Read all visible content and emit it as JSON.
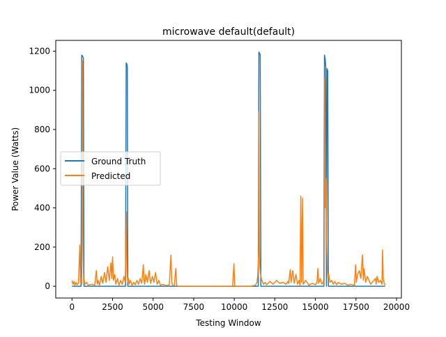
{
  "chart_data": {
    "type": "line",
    "title": "microwave default(default)",
    "xlabel": "Testing Window",
    "ylabel": "Power Value (Watts)",
    "xlim": [
      -1000,
      20300
    ],
    "ylim": [
      -60,
      1255
    ],
    "xticks": [
      0,
      2500,
      5000,
      7500,
      10000,
      12500,
      15000,
      17500,
      20000
    ],
    "xtick_labels": [
      "0",
      "2500",
      "5000",
      "7500",
      "10000",
      "12500",
      "15000",
      "17500",
      "20000"
    ],
    "yticks": [
      0,
      200,
      400,
      600,
      800,
      1000,
      1200
    ],
    "ytick_labels": [
      "0",
      "200",
      "400",
      "600",
      "800",
      "1000",
      "1200"
    ],
    "grid": false,
    "legend_position": "center-left",
    "series": [
      {
        "name": "Ground Truth",
        "color": "#1f77b4",
        "x": [
          0,
          560,
          600,
          650,
          700,
          740,
          3300,
          3340,
          3380,
          3410,
          3440,
          11480,
          11520,
          11560,
          11600,
          11640,
          15520,
          15560,
          15600,
          15640,
          15680,
          15720,
          15760,
          15800,
          19300
        ],
        "y": [
          0,
          0,
          1180,
          1175,
          1165,
          0,
          0,
          1140,
          1135,
          1120,
          0,
          0,
          1195,
          1190,
          1180,
          0,
          0,
          1180,
          1160,
          1120,
          0,
          1110,
          1100,
          0,
          0
        ]
      },
      {
        "name": "Predicted",
        "color": "#ff7f0e",
        "x": [
          0,
          60,
          120,
          180,
          250,
          320,
          400,
          480,
          520,
          560,
          600,
          640,
          680,
          720,
          760,
          800,
          900,
          1000,
          1200,
          1400,
          1500,
          1560,
          1620,
          1700,
          1800,
          1900,
          2000,
          2100,
          2200,
          2300,
          2400,
          2450,
          2500,
          2560,
          2640,
          2700,
          2800,
          2900,
          3000,
          3100,
          3200,
          3280,
          3320,
          3360,
          3380,
          3400,
          3440,
          3480,
          3520,
          3600,
          3700,
          3800,
          3900,
          4000,
          4100,
          4200,
          4300,
          4400,
          4440,
          4480,
          4550,
          4650,
          4750,
          4850,
          4950,
          5050,
          5150,
          5250,
          5350,
          5450,
          5600,
          5800,
          6000,
          6100,
          6150,
          6200,
          6300,
          6400,
          6450,
          6500,
          6600,
          7000,
          8000,
          9000,
          9900,
          9980,
          10030,
          10100,
          11000,
          11300,
          11400,
          11450,
          11500,
          11520,
          11550,
          11580,
          11620,
          11700,
          11800,
          11900,
          12000,
          12200,
          12400,
          12600,
          12800,
          13000,
          13200,
          13300,
          13350,
          13450,
          13500,
          13600,
          13700,
          13800,
          13900,
          14000,
          14050,
          14100,
          14150,
          14200,
          14250,
          14400,
          14600,
          14800,
          15000,
          15100,
          15150,
          15200,
          15300,
          15400,
          15500,
          15540,
          15580,
          15620,
          15660,
          15700,
          15740,
          15780,
          15820,
          15900,
          16000,
          16100,
          16200,
          16300,
          16400,
          16600,
          16800,
          17000,
          17200,
          17400,
          17480,
          17520,
          17600,
          17700,
          17800,
          17900,
          17960,
          18000,
          18100,
          18200,
          18400,
          18600,
          18700,
          18740,
          18800,
          18900,
          19000,
          19100,
          19140,
          19180,
          19250,
          19300
        ],
        "y": [
          30,
          10,
          25,
          5,
          20,
          8,
          15,
          210,
          20,
          40,
          10,
          1150,
          200,
          15,
          30,
          10,
          20,
          5,
          10,
          5,
          80,
          10,
          30,
          5,
          50,
          15,
          70,
          20,
          100,
          30,
          120,
          40,
          150,
          30,
          60,
          10,
          40,
          5,
          30,
          10,
          50,
          20,
          180,
          380,
          120,
          60,
          20,
          40,
          10,
          30,
          5,
          20,
          8,
          30,
          10,
          40,
          15,
          110,
          30,
          10,
          60,
          20,
          80,
          15,
          50,
          20,
          70,
          10,
          30,
          5,
          10,
          3,
          8,
          160,
          20,
          5,
          3,
          90,
          5,
          2,
          0,
          0,
          0,
          0,
          0,
          115,
          0,
          0,
          0,
          5,
          20,
          60,
          170,
          890,
          200,
          100,
          60,
          30,
          10,
          20,
          8,
          25,
          10,
          30,
          15,
          20,
          10,
          25,
          15,
          85,
          20,
          80,
          15,
          60,
          10,
          30,
          5,
          460,
          20,
          450,
          10,
          30,
          5,
          15,
          8,
          20,
          90,
          15,
          40,
          10,
          25,
          10,
          1060,
          400,
          550,
          200,
          80,
          40,
          60,
          20,
          30,
          10,
          25,
          8,
          20,
          10,
          15,
          5,
          10,
          3,
          110,
          20,
          60,
          80,
          40,
          160,
          30,
          90,
          20,
          50,
          10,
          30,
          40,
          10,
          50,
          20,
          30,
          10,
          185,
          40,
          15,
          5
        ]
      }
    ]
  }
}
